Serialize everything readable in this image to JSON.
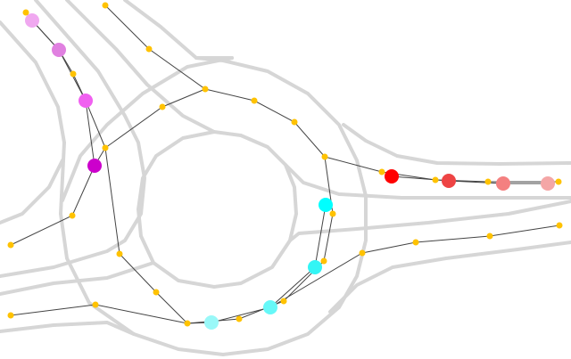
{
  "colors": {
    "road": "#d6d6d6",
    "edge": "#444444",
    "node": "#ffc200",
    "agents": {
      "magenta_trail": [
        "#f0a8f0",
        "#e080e0",
        "#f060f0",
        "#cc00cc"
      ],
      "red_trail": [
        "#ff0000",
        "#ee4444",
        "#f48080",
        "#f4a6a6"
      ],
      "cyan_trail": [
        "#00ffff",
        "#33f5f5",
        "#66f8f8",
        "#99f8f8"
      ]
    }
  }
}
